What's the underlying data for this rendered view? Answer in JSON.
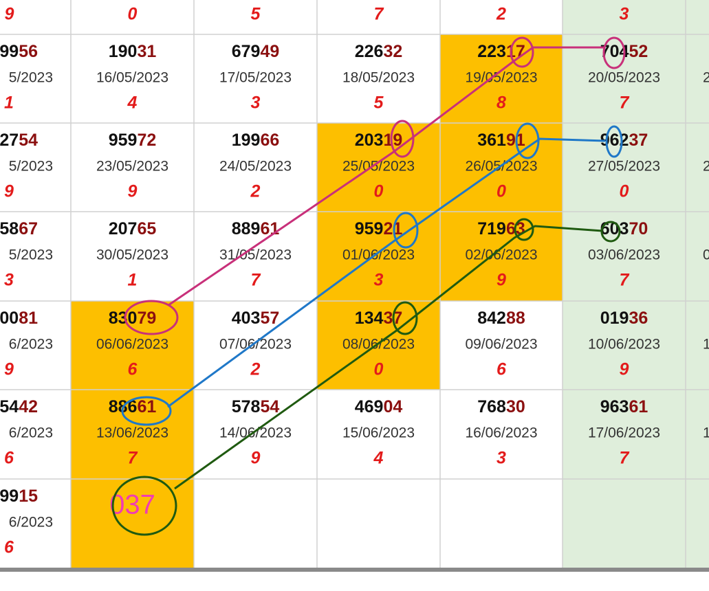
{
  "header": [
    "9",
    "0",
    "5",
    "7",
    "2",
    "3"
  ],
  "rows": [
    [
      {
        "head": "99",
        "tail": "56",
        "date": "5/2023",
        "digit": "1"
      },
      {
        "head": "190",
        "tail": "31",
        "date": "16/05/2023",
        "digit": "4"
      },
      {
        "head": "679",
        "tail": "49",
        "date": "17/05/2023",
        "digit": "3"
      },
      {
        "head": "226",
        "tail": "32",
        "date": "18/05/2023",
        "digit": "5"
      },
      {
        "head": "223",
        "tail": "17",
        "date": "19/05/2023",
        "digit": "8"
      },
      {
        "head": "704",
        "tail": "52",
        "date": "20/05/2023",
        "digit": "7"
      },
      {
        "date": "2"
      }
    ],
    [
      {
        "head": "27",
        "tail": "54",
        "date": "5/2023",
        "digit": "9"
      },
      {
        "head": "959",
        "tail": "72",
        "date": "23/05/2023",
        "digit": "9"
      },
      {
        "head": "199",
        "tail": "66",
        "date": "24/05/2023",
        "digit": "2"
      },
      {
        "head": "203",
        "tail": "19",
        "date": "25/05/2023",
        "digit": "0"
      },
      {
        "head": "361",
        "tail": "91",
        "date": "26/05/2023",
        "digit": "0"
      },
      {
        "head": "962",
        "tail": "37",
        "date": "27/05/2023",
        "digit": "0"
      },
      {
        "date": "2"
      }
    ],
    [
      {
        "head": "58",
        "tail": "67",
        "date": "5/2023",
        "digit": "3"
      },
      {
        "head": "207",
        "tail": "65",
        "date": "30/05/2023",
        "digit": "1"
      },
      {
        "head": "889",
        "tail": "61",
        "date": "31/05/2023",
        "digit": "7"
      },
      {
        "head": "959",
        "tail": "21",
        "date": "01/06/2023",
        "digit": "3"
      },
      {
        "head": "719",
        "tail": "63",
        "date": "02/06/2023",
        "digit": "9"
      },
      {
        "head": "603",
        "tail": "70",
        "date": "03/06/2023",
        "digit": "7"
      },
      {
        "date": "0"
      }
    ],
    [
      {
        "head": "00",
        "tail": "81",
        "date": "6/2023",
        "digit": "9"
      },
      {
        "head": "830",
        "tail": "79",
        "date": "06/06/2023",
        "digit": "6"
      },
      {
        "head": "403",
        "tail": "57",
        "date": "07/06/2023",
        "digit": "2"
      },
      {
        "head": "134",
        "tail": "37",
        "date": "08/06/2023",
        "digit": "0"
      },
      {
        "head": "842",
        "tail": "88",
        "date": "09/06/2023",
        "digit": "6"
      },
      {
        "head": "019",
        "tail": "36",
        "date": "10/06/2023",
        "digit": "9"
      },
      {
        "date": "1"
      }
    ],
    [
      {
        "head": "54",
        "tail": "42",
        "date": "6/2023",
        "digit": "6"
      },
      {
        "head": "886",
        "tail": "61",
        "date": "13/06/2023",
        "digit": "7"
      },
      {
        "head": "578",
        "tail": "54",
        "date": "14/06/2023",
        "digit": "9"
      },
      {
        "head": "469",
        "tail": "04",
        "date": "15/06/2023",
        "digit": "4"
      },
      {
        "head": "768",
        "tail": "30",
        "date": "16/06/2023",
        "digit": "3"
      },
      {
        "head": "963",
        "tail": "61",
        "date": "17/06/2023",
        "digit": "7"
      },
      {
        "date": "1"
      }
    ],
    [
      {
        "head": "99",
        "tail": "15",
        "date": "6/2023",
        "digit": "6"
      },
      {
        "big": "037"
      }
    ]
  ]
}
